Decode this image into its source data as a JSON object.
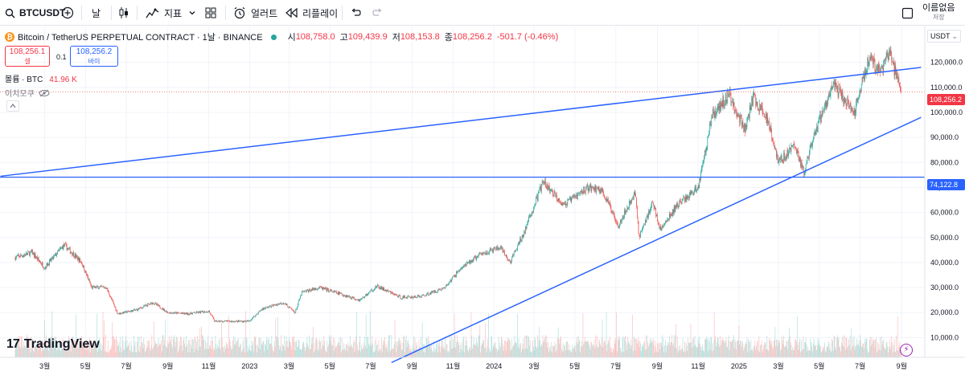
{
  "toolbar": {
    "symbol": "BTCUSDT",
    "interval": "날",
    "indicators_label": "지표",
    "alert_label": "얼러트",
    "replay_label": "리플레이",
    "layout_name": "이름없음",
    "layout_sub": "저장"
  },
  "legend": {
    "symbol_full": "Bitcoin / TetherUS PERPETUAL CONTRACT · 1날 · BINANCE",
    "open_label": "시",
    "open": "108,758.0",
    "high_label": "고",
    "high": "109,439.9",
    "low_label": "저",
    "low": "108,153.8",
    "close_label": "종",
    "close": "108,256.2",
    "change": "-501.7 (-0.46%)"
  },
  "trade": {
    "sell_price": "108,256.1",
    "sell_label": "셀",
    "spread": "0.1",
    "buy_price": "108,256.2",
    "buy_label": "바이"
  },
  "volume_legend": {
    "label": "볼륨 · BTC",
    "value": "41.96 K"
  },
  "hide_all_label": "이치모쿠",
  "brand": "TradingView",
  "colors": {
    "up": "#26a69a",
    "down": "#ef5350",
    "trendline": "#2962ff",
    "accent": "#2962ff"
  },
  "chart_data": {
    "type": "candlestick",
    "currency": "USDT",
    "y_scale": "linear",
    "ylim": [
      0,
      130000
    ],
    "y_ticks": [
      "120,000.0",
      "110,000.0",
      "100,000.0",
      "90,000.0",
      "80,000.0",
      "70,000.0",
      "60,000.0",
      "50,000.0",
      "40,000.0",
      "30,000.0",
      "20,000.0",
      "10,000.0"
    ],
    "y_tick_values": [
      120000,
      110000,
      100000,
      90000,
      80000,
      70000,
      60000,
      50000,
      40000,
      30000,
      20000,
      10000
    ],
    "x_ticks": [
      "3월",
      "5월",
      "7월",
      "9월",
      "11월",
      "2023",
      "3월",
      "5월",
      "7월",
      "9월",
      "11월",
      "2024",
      "3월",
      "5월",
      "7월",
      "9월",
      "11월",
      "2025",
      "3월",
      "5월",
      "7월",
      "9월"
    ],
    "x_tick_dates": [
      "2022-03-01",
      "2022-05-01",
      "2022-07-01",
      "2022-09-01",
      "2022-11-01",
      "2023-01-01",
      "2023-03-01",
      "2023-05-01",
      "2023-07-01",
      "2023-09-01",
      "2023-11-01",
      "2024-01-01",
      "2024-03-01",
      "2024-05-01",
      "2024-07-01",
      "2024-09-01",
      "2024-11-01",
      "2025-01-01",
      "2025-03-01",
      "2025-05-01",
      "2025-07-01",
      "2025-09-01"
    ],
    "price_path": [
      [
        "2022-01-16",
        42000
      ],
      [
        "2022-02-10",
        44000
      ],
      [
        "2022-03-01",
        38000
      ],
      [
        "2022-03-30",
        47000
      ],
      [
        "2022-04-25",
        40000
      ],
      [
        "2022-05-10",
        30000
      ],
      [
        "2022-06-01",
        30000
      ],
      [
        "2022-06-18",
        19500
      ],
      [
        "2022-07-15",
        21000
      ],
      [
        "2022-08-10",
        24000
      ],
      [
        "2022-09-01",
        20000
      ],
      [
        "2022-10-01",
        19500
      ],
      [
        "2022-11-01",
        20500
      ],
      [
        "2022-11-10",
        16500
      ],
      [
        "2022-12-31",
        16500
      ],
      [
        "2023-01-20",
        21500
      ],
      [
        "2023-02-20",
        24000
      ],
      [
        "2023-03-10",
        20000
      ],
      [
        "2023-03-20",
        28000
      ],
      [
        "2023-04-15",
        30000
      ],
      [
        "2023-06-15",
        25000
      ],
      [
        "2023-07-10",
        30500
      ],
      [
        "2023-08-15",
        26000
      ],
      [
        "2023-09-15",
        26500
      ],
      [
        "2023-10-20",
        30000
      ],
      [
        "2023-11-10",
        37000
      ],
      [
        "2023-12-10",
        43000
      ],
      [
        "2024-01-10",
        46000
      ],
      [
        "2024-01-25",
        40000
      ],
      [
        "2024-02-15",
        52000
      ],
      [
        "2024-03-14",
        72000
      ],
      [
        "2024-04-15",
        63000
      ],
      [
        "2024-05-20",
        70000
      ],
      [
        "2024-06-10",
        69000
      ],
      [
        "2024-07-05",
        55000
      ],
      [
        "2024-07-30",
        68000
      ],
      [
        "2024-08-05",
        50000
      ],
      [
        "2024-08-25",
        64000
      ],
      [
        "2024-09-06",
        53000
      ],
      [
        "2024-10-01",
        63000
      ],
      [
        "2024-11-01",
        70000
      ],
      [
        "2024-11-22",
        99000
      ],
      [
        "2024-12-17",
        107000
      ],
      [
        "2025-01-10",
        93000
      ],
      [
        "2025-01-22",
        106000
      ],
      [
        "2025-02-15",
        96000
      ],
      [
        "2025-03-01",
        80000
      ],
      [
        "2025-03-25",
        87000
      ],
      [
        "2025-04-08",
        76000
      ],
      [
        "2025-05-01",
        97000
      ],
      [
        "2025-05-22",
        111000
      ],
      [
        "2025-06-22",
        100000
      ],
      [
        "2025-07-14",
        122000
      ],
      [
        "2025-07-30",
        116000
      ],
      [
        "2025-08-14",
        123500
      ],
      [
        "2025-08-31",
        108256
      ]
    ],
    "horizontal_levels": [
      {
        "value": 74122.8,
        "label": "74,122.8"
      }
    ],
    "last_price": {
      "value": 108256.2,
      "label": "108,256.2"
    },
    "trendlines": [
      {
        "from": [
          "2021-12-25",
          74500
        ],
        "to": [
          "2025-09-30",
          118000
        ]
      },
      {
        "from": [
          "2023-08-01",
          0
        ],
        "to": [
          "2025-09-30",
          98000
        ]
      }
    ],
    "grid": true,
    "legend_position": "top-left"
  }
}
